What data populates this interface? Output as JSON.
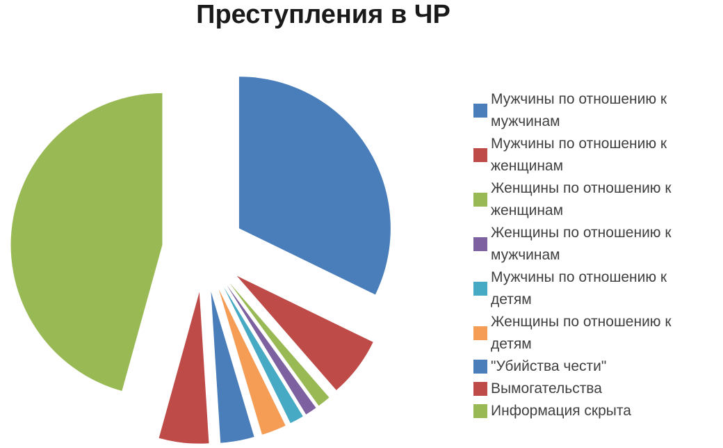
{
  "title": "Преступления в ЧР",
  "chart_data": {
    "type": "pie",
    "title": "Преступления в ЧР",
    "labels": [
      "Мужчины по отношению к мужчинам",
      "Мужчины по отношению к женщинам",
      "Женщины по отношению к женщинам",
      "Женщины по отношению к мужчинам",
      "Мужчины по отношению к детям",
      "Женщины по отношению к детям",
      "\"Убийства чести\"",
      "Вымогательства",
      "Информация скрыта"
    ],
    "values": [
      32.2,
      6.4,
      1.4,
      1.25,
      1.5,
      2.65,
      3.6,
      5.3,
      45.7
    ],
    "unit": "percent-estimated-from-slice-angles",
    "colors": [
      "#4a7ebb",
      "#be4b48",
      "#98b954",
      "#7d60a0",
      "#46aac5",
      "#f59c55",
      "#4a7ebb",
      "#be4b48",
      "#98b954"
    ],
    "title_color": "#1a1a1a",
    "legend_text_color": "#3f3f3f",
    "background": "#ffffff",
    "legend_position": "right",
    "start_angle_deg": 0,
    "clockwise": true,
    "exploded": true,
    "data_labels": "none"
  }
}
